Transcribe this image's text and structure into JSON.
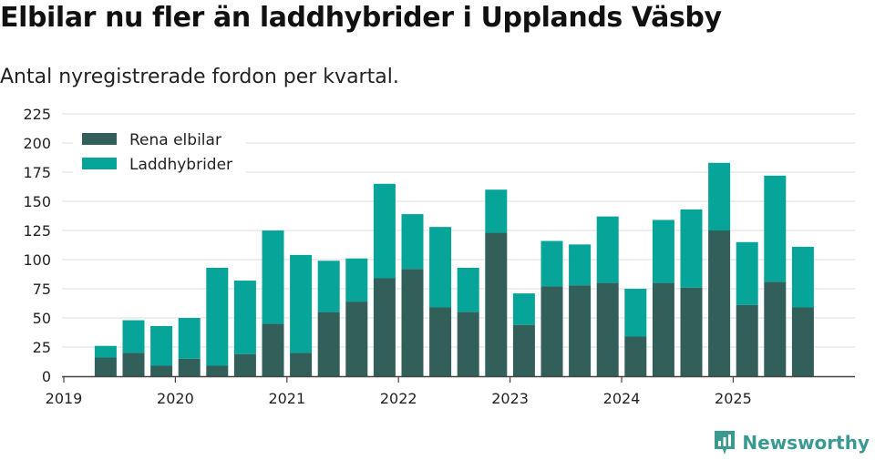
{
  "header": {
    "title": "Elbilar nu fler än laddhybrider i Upplands Väsby",
    "subtitle": "Antal nyregistrerade fordon per kvartal."
  },
  "brand": {
    "name": "Newsworthy"
  },
  "chart_data": {
    "type": "bar",
    "stacked": true,
    "title": "Elbilar nu fler än laddhybrider i Upplands Väsby",
    "subtitle": "Antal nyregistrerade fordon per kvartal.",
    "xlabel": "",
    "ylabel": "",
    "ylim": [
      0,
      225
    ],
    "yticks": [
      0,
      25,
      50,
      75,
      100,
      125,
      150,
      175,
      200,
      225
    ],
    "x_tick_labels": [
      "2019",
      "2020",
      "2021",
      "2022",
      "2023",
      "2024",
      "2025"
    ],
    "grid": true,
    "legend_position": "top-left",
    "categories": [
      "2019 Q2",
      "2019 Q3",
      "2019 Q4",
      "2020 Q1",
      "2020 Q2",
      "2020 Q3",
      "2020 Q4",
      "2021 Q1",
      "2021 Q2",
      "2021 Q3",
      "2021 Q4",
      "2022 Q1",
      "2022 Q2",
      "2022 Q3",
      "2022 Q4",
      "2023 Q1",
      "2023 Q2",
      "2023 Q3",
      "2023 Q4",
      "2024 Q1",
      "2024 Q2",
      "2024 Q3",
      "2024 Q4",
      "2025 Q1",
      "2025 Q2",
      "2025 Q3"
    ],
    "series": [
      {
        "name": "Rena elbilar",
        "color": "#335f5b",
        "values": [
          16,
          20,
          9,
          15,
          9,
          19,
          45,
          20,
          55,
          64,
          84,
          92,
          59,
          55,
          123,
          44,
          77,
          78,
          80,
          34,
          80,
          76,
          125,
          61,
          81,
          59
        ]
      },
      {
        "name": "Laddhybrider",
        "color": "#07a49a",
        "values": [
          10,
          28,
          34,
          35,
          84,
          63,
          80,
          84,
          44,
          37,
          81,
          47,
          69,
          38,
          37,
          27,
          39,
          35,
          57,
          41,
          54,
          67,
          58,
          54,
          91,
          52
        ]
      }
    ]
  }
}
